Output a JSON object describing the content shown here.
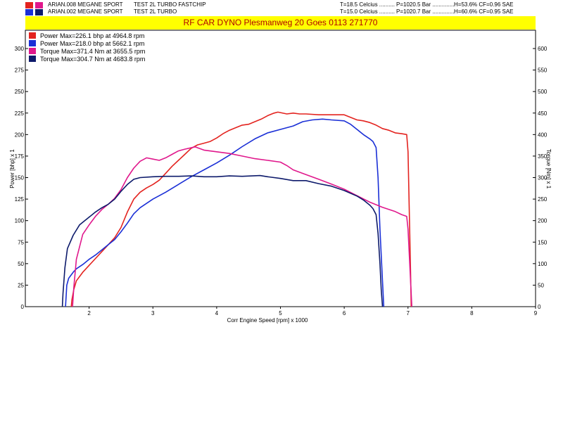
{
  "header": {
    "runs": [
      {
        "swatch_a": "#e3231f",
        "swatch_b": "#e0188c",
        "name": "ARIAN.008 MEGANE SPORT",
        "desc": "TEST 2L TURBO FASTCHIP",
        "temp": "T=18.5 Celcius ..........",
        "press": "P=1020.5 Bar ..............",
        "hum": "H=53.6% CF=0.96 SAE"
      },
      {
        "swatch_a": "#1a2fd6",
        "swatch_b": "#0d1a6b",
        "name": "ARIAN.002 MEGANE SPORT",
        "desc": "TEST 2L TURBO",
        "temp": "T=15.0 Celcius ..........",
        "press": "P=1020.7 Bar ..............",
        "hum": "H=60.6% CF=0.95 SAE"
      }
    ],
    "banner": "RF CAR DYNO  Plesmanweg 20 Goes  0113 271770"
  },
  "chart_data": {
    "type": "line",
    "title": "RF CAR DYNO  Plesmanweg 20 Goes  0113 271770",
    "xlabel": "Corr Engine Speed [rpm] x 1000",
    "ylabel_left": "Power [bhp] x 1",
    "ylabel_right": "Torque [Nm] x 1",
    "xlim": [
      1,
      9
    ],
    "ylim_left": [
      0,
      300
    ],
    "ylim_right": [
      0,
      600
    ],
    "x_ticks": [
      "2",
      "3",
      "4",
      "5",
      "6",
      "7",
      "8",
      "9"
    ],
    "y_left_ticks": [
      "0",
      "25",
      "50",
      "75",
      "100",
      "125",
      "150",
      "175",
      "200",
      "225",
      "250",
      "275",
      "300"
    ],
    "y_right_ticks": [
      "0",
      "50",
      "100",
      "150",
      "200",
      "250",
      "300",
      "350",
      "400",
      "450",
      "500",
      "550",
      "600"
    ],
    "grid": false,
    "legend_position": "top-left",
    "legend": [
      {
        "label": "Power  Max=226.1 bhp at 4964.8 rpm",
        "color": "#e3231f"
      },
      {
        "label": "Power  Max=218.0 bhp at 5662.1 rpm",
        "color": "#1a2fd6"
      },
      {
        "label": "Torque  Max=371.4 Nm at 3655.5 rpm",
        "color": "#e0188c"
      },
      {
        "label": "Torque  Max=304.7 Nm at 4683.8 rpm",
        "color": "#0d1a6b"
      }
    ],
    "series": [
      {
        "color": "#e3231f",
        "axis": "left",
        "points": [
          [
            1.72,
            0
          ],
          [
            1.73,
            8
          ],
          [
            1.76,
            20
          ],
          [
            1.8,
            30
          ],
          [
            1.9,
            40
          ],
          [
            2.0,
            48
          ],
          [
            2.1,
            56
          ],
          [
            2.2,
            64
          ],
          [
            2.3,
            72
          ],
          [
            2.4,
            80
          ],
          [
            2.5,
            92
          ],
          [
            2.6,
            110
          ],
          [
            2.7,
            125
          ],
          [
            2.8,
            133
          ],
          [
            2.9,
            138
          ],
          [
            3.0,
            142
          ],
          [
            3.1,
            147
          ],
          [
            3.2,
            155
          ],
          [
            3.3,
            163
          ],
          [
            3.4,
            170
          ],
          [
            3.5,
            177
          ],
          [
            3.6,
            184
          ],
          [
            3.7,
            188
          ],
          [
            3.8,
            190
          ],
          [
            3.9,
            192
          ],
          [
            4.0,
            196
          ],
          [
            4.1,
            201
          ],
          [
            4.2,
            205
          ],
          [
            4.3,
            208
          ],
          [
            4.4,
            211
          ],
          [
            4.5,
            212
          ],
          [
            4.6,
            215
          ],
          [
            4.7,
            218
          ],
          [
            4.8,
            222
          ],
          [
            4.9,
            225
          ],
          [
            4.96,
            226.1
          ],
          [
            5.1,
            224
          ],
          [
            5.2,
            225
          ],
          [
            5.3,
            224
          ],
          [
            5.4,
            224
          ],
          [
            5.6,
            223
          ],
          [
            5.8,
            223
          ],
          [
            6.0,
            223
          ],
          [
            6.1,
            220
          ],
          [
            6.2,
            217
          ],
          [
            6.3,
            216
          ],
          [
            6.4,
            214
          ],
          [
            6.5,
            211
          ],
          [
            6.6,
            207
          ],
          [
            6.7,
            205
          ],
          [
            6.8,
            202
          ],
          [
            6.9,
            201
          ],
          [
            6.98,
            200
          ],
          [
            7.0,
            180
          ],
          [
            7.02,
            110
          ],
          [
            7.04,
            40
          ],
          [
            7.05,
            0
          ]
        ]
      },
      {
        "color": "#1a2fd6",
        "axis": "left",
        "points": [
          [
            1.63,
            0
          ],
          [
            1.65,
            25
          ],
          [
            1.68,
            33
          ],
          [
            1.75,
            40
          ],
          [
            1.8,
            44
          ],
          [
            1.9,
            49
          ],
          [
            2.0,
            55
          ],
          [
            2.1,
            60
          ],
          [
            2.2,
            66
          ],
          [
            2.3,
            72
          ],
          [
            2.4,
            78
          ],
          [
            2.5,
            87
          ],
          [
            2.6,
            97
          ],
          [
            2.7,
            108
          ],
          [
            2.8,
            115
          ],
          [
            2.9,
            120
          ],
          [
            3.0,
            125
          ],
          [
            3.2,
            133
          ],
          [
            3.4,
            142
          ],
          [
            3.6,
            151
          ],
          [
            3.8,
            159
          ],
          [
            4.0,
            167
          ],
          [
            4.2,
            176
          ],
          [
            4.4,
            186
          ],
          [
            4.6,
            195
          ],
          [
            4.8,
            202
          ],
          [
            5.0,
            206
          ],
          [
            5.2,
            210
          ],
          [
            5.35,
            215
          ],
          [
            5.5,
            217
          ],
          [
            5.66,
            218
          ],
          [
            5.8,
            217
          ],
          [
            6.0,
            216
          ],
          [
            6.1,
            212
          ],
          [
            6.2,
            206
          ],
          [
            6.3,
            200
          ],
          [
            6.4,
            195
          ],
          [
            6.45,
            192
          ],
          [
            6.5,
            185
          ],
          [
            6.53,
            150
          ],
          [
            6.56,
            90
          ],
          [
            6.6,
            30
          ],
          [
            6.62,
            0
          ]
        ]
      },
      {
        "color": "#e0188c",
        "axis": "right",
        "points": [
          [
            1.74,
            0
          ],
          [
            1.76,
            45
          ],
          [
            1.8,
            110
          ],
          [
            1.9,
            168
          ],
          [
            2.0,
            190
          ],
          [
            2.1,
            210
          ],
          [
            2.2,
            226
          ],
          [
            2.3,
            238
          ],
          [
            2.4,
            252
          ],
          [
            2.5,
            272
          ],
          [
            2.6,
            300
          ],
          [
            2.7,
            322
          ],
          [
            2.8,
            338
          ],
          [
            2.9,
            346
          ],
          [
            3.0,
            343
          ],
          [
            3.1,
            340
          ],
          [
            3.2,
            346
          ],
          [
            3.3,
            354
          ],
          [
            3.4,
            362
          ],
          [
            3.5,
            366
          ],
          [
            3.66,
            371.4
          ],
          [
            3.8,
            364
          ],
          [
            4.0,
            360
          ],
          [
            4.2,
            356
          ],
          [
            4.4,
            350
          ],
          [
            4.6,
            344
          ],
          [
            4.8,
            340
          ],
          [
            5.0,
            336
          ],
          [
            5.1,
            328
          ],
          [
            5.2,
            318
          ],
          [
            5.4,
            307
          ],
          [
            5.6,
            296
          ],
          [
            5.8,
            285
          ],
          [
            6.0,
            273
          ],
          [
            6.2,
            258
          ],
          [
            6.4,
            243
          ],
          [
            6.6,
            231
          ],
          [
            6.8,
            221
          ],
          [
            6.9,
            214
          ],
          [
            6.98,
            210
          ],
          [
            7.0,
            180
          ],
          [
            7.02,
            120
          ],
          [
            7.04,
            60
          ],
          [
            7.06,
            0
          ]
        ]
      },
      {
        "color": "#0d1a6b",
        "axis": "right",
        "points": [
          [
            1.58,
            0
          ],
          [
            1.59,
            30
          ],
          [
            1.62,
            90
          ],
          [
            1.66,
            135
          ],
          [
            1.75,
            166
          ],
          [
            1.85,
            190
          ],
          [
            2.0,
            208
          ],
          [
            2.1,
            220
          ],
          [
            2.2,
            230
          ],
          [
            2.3,
            238
          ],
          [
            2.4,
            250
          ],
          [
            2.5,
            268
          ],
          [
            2.6,
            284
          ],
          [
            2.7,
            296
          ],
          [
            2.8,
            300
          ],
          [
            3.0,
            302
          ],
          [
            3.2,
            303
          ],
          [
            3.4,
            303
          ],
          [
            3.6,
            304
          ],
          [
            3.8,
            302
          ],
          [
            4.0,
            302
          ],
          [
            4.2,
            304
          ],
          [
            4.4,
            303
          ],
          [
            4.68,
            304.7
          ],
          [
            4.8,
            302
          ],
          [
            5.0,
            298
          ],
          [
            5.2,
            293
          ],
          [
            5.4,
            293
          ],
          [
            5.6,
            286
          ],
          [
            5.8,
            280
          ],
          [
            6.0,
            270
          ],
          [
            6.2,
            257
          ],
          [
            6.3,
            248
          ],
          [
            6.4,
            236
          ],
          [
            6.45,
            228
          ],
          [
            6.5,
            214
          ],
          [
            6.53,
            170
          ],
          [
            6.56,
            100
          ],
          [
            6.58,
            40
          ],
          [
            6.6,
            0
          ]
        ]
      }
    ]
  }
}
